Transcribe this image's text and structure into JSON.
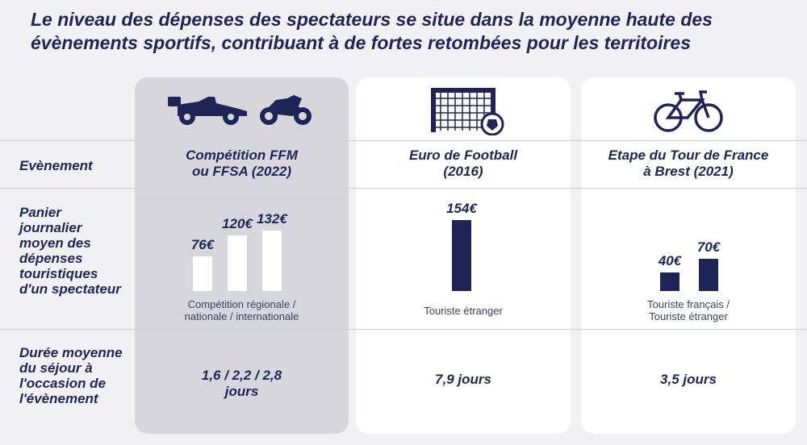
{
  "title": "Le niveau des dépenses des spectateurs se situe dans la moyenne haute des évènements sportifs, contribuant à de fortes retombées pour les territoires",
  "row_labels": {
    "event": "Evènement",
    "basket": "Panier journalier moyen des dépenses touristiques d'un spectateur",
    "duration": "Durée moyenne du séjour à l'occasion de l'évènement"
  },
  "columns": [
    {
      "event_line1": "Compétition FFM",
      "event_line2": "ou FFSA (2022)",
      "caption_line1": "Compétition régionale /",
      "caption_line2": "nationale / internationale",
      "duration_line1": "1,6 / 2,2 / 2,8",
      "duration_line2": "jours",
      "icons": [
        "formula-car-icon",
        "motorcycle-icon"
      ]
    },
    {
      "event_line1": "Euro de Football",
      "event_line2": "(2016)",
      "caption_line1": "Touriste étranger",
      "caption_line2": "",
      "duration_line1": "7,9 jours",
      "duration_line2": "",
      "icons": [
        "football-goal-icon"
      ]
    },
    {
      "event_line1": "Etape du Tour de France",
      "event_line2": "à Brest (2021)",
      "caption_line1": "Touriste français /",
      "caption_line2": "Touriste étranger",
      "duration_line1": "3,5 jours",
      "duration_line2": "",
      "icons": [
        "bicycle-icon"
      ]
    }
  ],
  "chart_data": {
    "type": "bar",
    "unit": "€",
    "groups": [
      {
        "categories": [
          "Compétition régionale",
          "nationale",
          "internationale"
        ],
        "values": [
          76,
          120,
          132
        ],
        "labels": [
          "76€",
          "120€",
          "132€"
        ],
        "color": "#ffffff"
      },
      {
        "categories": [
          "Touriste étranger"
        ],
        "values": [
          154
        ],
        "labels": [
          "154€"
        ],
        "color": "#1f2457"
      },
      {
        "categories": [
          "Touriste français",
          "Touriste étranger"
        ],
        "values": [
          40,
          70
        ],
        "labels": [
          "40€",
          "70€"
        ],
        "color": "#1f2457"
      }
    ]
  },
  "colors": {
    "navy": "#1f2457",
    "grey_card": "#d6d6dc",
    "white": "#ffffff"
  }
}
